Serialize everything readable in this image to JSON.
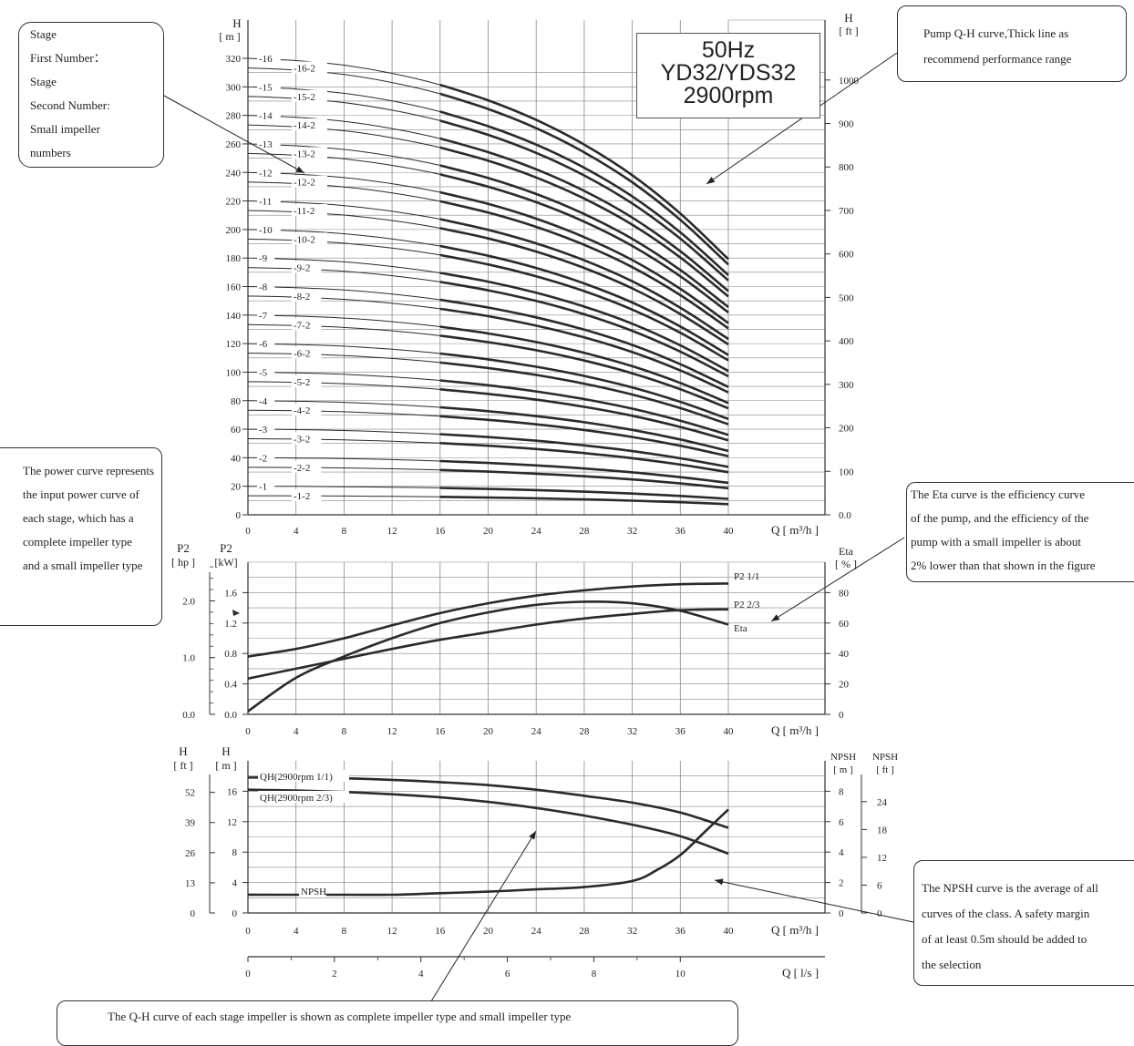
{
  "title_box": {
    "line1": "50Hz",
    "line2": "YD32/YDS32",
    "line3": "2900rpm"
  },
  "callouts": {
    "stage": [
      "Stage",
      "First Number：",
      "Stage",
      "Second Number:",
      "Small impeller",
      " numbers"
    ],
    "qh_thick": [
      "Pump Q-H curve,Thick line as",
      "recommend performance range"
    ],
    "power": [
      "The power curve represents",
      "the input power curve of",
      "each stage, which has a",
      "complete impeller type",
      "and a small impeller type"
    ],
    "eta": [
      "The Eta curve is the efficiency curve",
      "of the pump, and the efficiency of the",
      "pump with a small impeller is about",
      "2% lower than that shown in the figure"
    ],
    "npsh": [
      "The NPSH curve is the average of all",
      "curves of the class. A safety margin",
      "of at least 0.5m should be added to",
      " the selection"
    ],
    "bottom": [
      "The Q-H curve of each stage impeller is shown as complete impeller type and small impeller type"
    ]
  },
  "colors": {
    "curve": "#2a2a2a",
    "grid": "#888888",
    "axis": "#333333",
    "text": "#222222"
  },
  "chart_data": [
    {
      "type": "line",
      "title": "50Hz YD32/YDS32 2900rpm",
      "xlabel": "Q [ m³/h ]",
      "ylabel": "H [ m ]",
      "y2label": "H [ ft ]",
      "xlim": [
        0,
        40
      ],
      "ylim": [
        0,
        320
      ],
      "y2lim": [
        0,
        1050
      ],
      "x_ticks": [
        "0",
        "4",
        "8",
        "12",
        "16",
        "20",
        "24",
        "28",
        "32",
        "36",
        "40"
      ],
      "y_ticks": [
        "0",
        "20",
        "40",
        "60",
        "80",
        "100",
        "120",
        "140",
        "160",
        "180",
        "200",
        "220",
        "240",
        "260",
        "280",
        "300",
        "320"
      ],
      "y2_ticks": [
        "0.0",
        "100",
        "200",
        "300",
        "400",
        "500",
        "600",
        "700",
        "800",
        "900",
        "1000"
      ],
      "y_axis_title": "H",
      "y_axis_unit": "[ m ]",
      "y2_axis_title": "H",
      "y2_axis_unit": "[ ft ]",
      "x_axis_title": "Q [ m³/h ]",
      "grid": true,
      "curve_shape": {
        "x": [
          0,
          4,
          8,
          12,
          16,
          20,
          24,
          28,
          32,
          36,
          40
        ],
        "head_factor": [
          1.0,
          0.995,
          0.985,
          0.967,
          0.942,
          0.908,
          0.865,
          0.811,
          0.744,
          0.66,
          0.56
        ]
      },
      "recommended_range": [
        16,
        40
      ],
      "series": [
        {
          "name": "-1",
          "shutoff_head": 20.0
        },
        {
          "name": "-1-2",
          "shutoff_head": 13.33
        },
        {
          "name": "-2",
          "shutoff_head": 40.0
        },
        {
          "name": "-2-2",
          "shutoff_head": 33.33
        },
        {
          "name": "-3",
          "shutoff_head": 60.0
        },
        {
          "name": "-3-2",
          "shutoff_head": 53.33
        },
        {
          "name": "-4",
          "shutoff_head": 80.0
        },
        {
          "name": "-4-2",
          "shutoff_head": 73.33
        },
        {
          "name": "-5",
          "shutoff_head": 100.0
        },
        {
          "name": "-5-2",
          "shutoff_head": 93.33
        },
        {
          "name": "-6",
          "shutoff_head": 120.0
        },
        {
          "name": "-6-2",
          "shutoff_head": 113.33
        },
        {
          "name": "-7",
          "shutoff_head": 140.0
        },
        {
          "name": "-7-2",
          "shutoff_head": 133.33
        },
        {
          "name": "-8",
          "shutoff_head": 160.0
        },
        {
          "name": "-8-2",
          "shutoff_head": 153.33
        },
        {
          "name": "-9",
          "shutoff_head": 180.0
        },
        {
          "name": "-9-2",
          "shutoff_head": 173.33
        },
        {
          "name": "-10",
          "shutoff_head": 200.0
        },
        {
          "name": "-10-2",
          "shutoff_head": 193.33
        },
        {
          "name": "-11",
          "shutoff_head": 220.0
        },
        {
          "name": "-11-2",
          "shutoff_head": 213.33
        },
        {
          "name": "-12",
          "shutoff_head": 240.0
        },
        {
          "name": "-12-2",
          "shutoff_head": 233.33
        },
        {
          "name": "-13",
          "shutoff_head": 260.0
        },
        {
          "name": "-13-2",
          "shutoff_head": 253.33
        },
        {
          "name": "-14",
          "shutoff_head": 280.0
        },
        {
          "name": "-14-2",
          "shutoff_head": 273.33
        },
        {
          "name": "-15",
          "shutoff_head": 300.0
        },
        {
          "name": "-15-2",
          "shutoff_head": 293.33
        },
        {
          "name": "-16",
          "shutoff_head": 320.0
        },
        {
          "name": "-16-2",
          "shutoff_head": 313.33
        }
      ]
    },
    {
      "type": "line",
      "xlabel": "Q [ m³/h ]",
      "xlim": [
        0,
        40
      ],
      "ylim": [
        0,
        2.0
      ],
      "y_hp_lim": [
        0,
        2.68
      ],
      "y2lim": [
        0,
        100
      ],
      "x_ticks": [
        "0",
        "4",
        "8",
        "12",
        "16",
        "20",
        "24",
        "28",
        "32",
        "36",
        "40"
      ],
      "y_ticks": [
        "0.0",
        "0.4",
        "0.8",
        "1.2",
        "1.6"
      ],
      "y_hp_ticks": [
        "0.0",
        "1.0",
        "2.0"
      ],
      "y2_ticks": [
        "0",
        "20",
        "40",
        "60",
        "80"
      ],
      "y_axis_title": "P2",
      "y_axis_unit": "[kW]",
      "y_hp_title": "P2",
      "y_hp_unit": "[ hp ]",
      "y2_axis_title": "Eta",
      "y2_axis_unit": "[ % ]",
      "x_axis_title": "Q [ m³/h ]",
      "grid": true,
      "series": [
        {
          "name": "P2  1/1",
          "axis": "kW",
          "x": [
            0,
            4,
            8,
            12,
            16,
            20,
            24,
            28,
            32,
            36,
            40
          ],
          "y": [
            0.76,
            0.86,
            1.0,
            1.17,
            1.33,
            1.46,
            1.56,
            1.63,
            1.68,
            1.71,
            1.72
          ]
        },
        {
          "name": "P2  2/3",
          "axis": "kW",
          "x": [
            0,
            4,
            8,
            12,
            16,
            20,
            24,
            28,
            32,
            36,
            40
          ],
          "y": [
            0.47,
            0.6,
            0.73,
            0.86,
            0.98,
            1.08,
            1.18,
            1.26,
            1.32,
            1.37,
            1.38
          ]
        },
        {
          "name": "Eta",
          "axis": "%",
          "x": [
            0,
            4,
            8,
            12,
            16,
            20,
            24,
            28,
            32,
            36,
            40
          ],
          "y": [
            2,
            24,
            38,
            50,
            60,
            67,
            72,
            74,
            73,
            68,
            59
          ]
        }
      ]
    },
    {
      "type": "line",
      "xlabel": "Q [ m³/h ]",
      "x2label": "Q [ l/s ]",
      "xlim": [
        0,
        40
      ],
      "ylim": [
        0,
        20
      ],
      "y_ft_lim": [
        0,
        65
      ],
      "y2lim": [
        0,
        10
      ],
      "y2_ft_lim": [
        0,
        30
      ],
      "x_ticks": [
        "0",
        "4",
        "8",
        "12",
        "16",
        "20",
        "24",
        "28",
        "32",
        "36",
        "40"
      ],
      "x2_ticks": [
        "0",
        "2",
        "4",
        "6",
        "8",
        "10"
      ],
      "y_ticks": [
        "0",
        "4",
        "8",
        "12",
        "16"
      ],
      "y_ft_ticks": [
        "0",
        "13",
        "26",
        "39",
        "52"
      ],
      "y2_ticks": [
        "0",
        "2",
        "4",
        "6",
        "8"
      ],
      "y2_ft_ticks": [
        "0",
        "6",
        "12",
        "18",
        "24"
      ],
      "y_axis_title": "H",
      "y_axis_unit": "[ m ]",
      "y_ft_title": "H",
      "y_ft_unit": "[ ft ]",
      "y2_axis_title": "NPSH",
      "y2_axis_unit": "[ m ]",
      "y2_ft_title": "NPSH",
      "y2_ft_unit": "[ ft ]",
      "x_axis_title": "Q [ m³/h ]",
      "x2_axis_title": "Q [ l/s ]",
      "grid": true,
      "series": [
        {
          "name": "QH(2900rpm 1/1)",
          "axis": "m",
          "x": [
            0,
            4,
            8,
            12,
            16,
            20,
            24,
            28,
            32,
            36,
            40
          ],
          "y": [
            17.8,
            17.8,
            17.7,
            17.5,
            17.2,
            16.8,
            16.2,
            15.4,
            14.5,
            13.2,
            11.2
          ]
        },
        {
          "name": "QH(2900rpm 2/3)",
          "axis": "m",
          "x": [
            0,
            4,
            8,
            12,
            16,
            20,
            24,
            28,
            32,
            36,
            40
          ],
          "y": [
            16.2,
            16.1,
            15.9,
            15.6,
            15.2,
            14.6,
            13.8,
            12.8,
            11.6,
            10.1,
            7.8
          ]
        },
        {
          "name": "NPSH",
          "axis": "npsh",
          "x": [
            0,
            4,
            8,
            12,
            16,
            20,
            24,
            28,
            32,
            34,
            36,
            38,
            40
          ],
          "y": [
            1.2,
            1.2,
            1.2,
            1.2,
            1.3,
            1.4,
            1.55,
            1.7,
            2.1,
            2.8,
            3.8,
            5.3,
            6.8
          ]
        }
      ]
    }
  ]
}
